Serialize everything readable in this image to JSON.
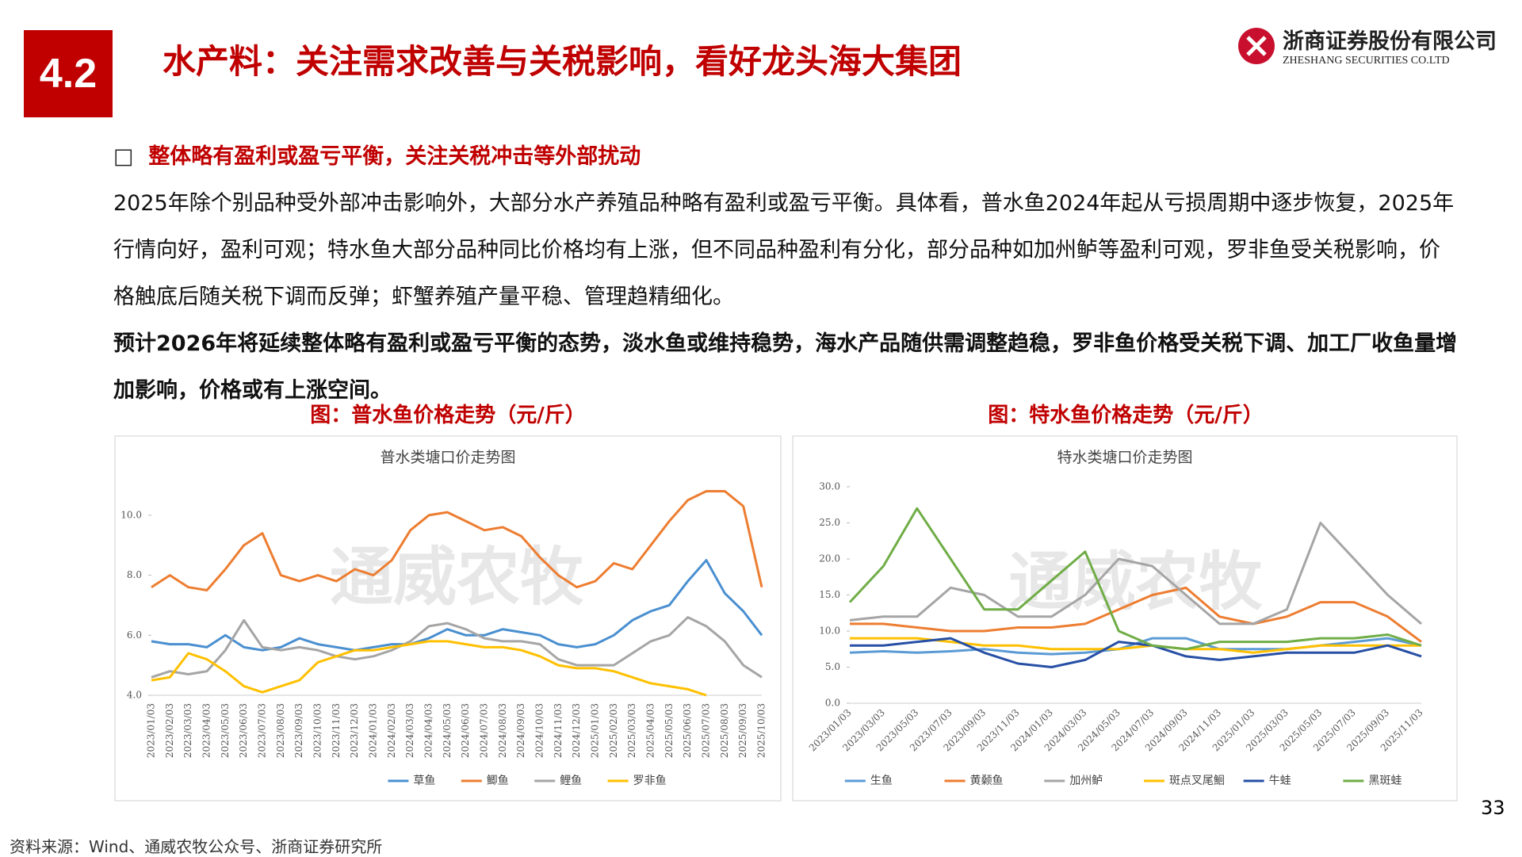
{
  "header": {
    "section": "4.2",
    "title": "水产料：关注需求改善与关税影响，看好龙头海大集团",
    "logo_cn": "浙商证券股份有限公司",
    "logo_en": "ZHESHANG SECURITIES CO.LTD"
  },
  "body": {
    "heading": "整体略有盈利或盈亏平衡，关注关税冲击等外部扰动",
    "paragraph": "2025年除个别品种受外部冲击影响外，大部分水产养殖品种略有盈利或盈亏平衡。具体看，普水鱼2024年起从亏损周期中逐步恢复，2025年行情向好，盈利可观；特水鱼大部分品种同比价格均有上涨，但不同品种盈利有分化，部分品种如加州鲈等盈利可观，罗非鱼受关税影响，价格触底后随关税下调而反弹；虾蟹养殖产量平稳、管理趋精细化。",
    "conclusion": "预计2026年将延续整体略有盈利或盈亏平衡的态势，淡水鱼或维持稳势，海水产品随供需调整趋稳，罗非鱼价格受关税下调、加工厂收鱼量增加影响，价格或有上涨空间。"
  },
  "chart_data": [
    {
      "type": "line",
      "caption": "图：普水鱼价格走势（元/斤）",
      "title": "普水类塘口价走势图",
      "watermark": "通威农牧",
      "categories": [
        "2023/01/03",
        "2023/02/03",
        "2023/03/03",
        "2023/04/03",
        "2023/05/03",
        "2023/06/03",
        "2023/07/03",
        "2023/08/03",
        "2023/09/03",
        "2023/10/03",
        "2023/11/03",
        "2023/12/03",
        "2024/01/03",
        "2024/02/03",
        "2024/03/03",
        "2024/04/03",
        "2024/05/03",
        "2024/06/03",
        "2024/07/03",
        "2024/08/03",
        "2024/09/03",
        "2024/10/03",
        "2024/11/03",
        "2024/12/03",
        "2025/01/03",
        "2025/02/03",
        "2025/03/03",
        "2025/04/03",
        "2025/05/03",
        "2025/06/03",
        "2025/07/03",
        "2025/08/03",
        "2025/09/03",
        "2025/10/03"
      ],
      "ylim": [
        4,
        11
      ],
      "yticks": [
        {
          "value": 4,
          "label": "4.0"
        },
        {
          "value": 6,
          "label": "6.0"
        },
        {
          "value": 8,
          "label": "8.0"
        },
        {
          "value": 10,
          "label": "10.0"
        }
      ],
      "legend": "bottom",
      "series": [
        {
          "name": "草鱼",
          "color": "#4a8fd0",
          "values": [
            5.8,
            5.7,
            5.7,
            5.6,
            6.0,
            5.6,
            5.5,
            5.6,
            5.9,
            5.7,
            5.6,
            5.5,
            5.6,
            5.7,
            5.7,
            5.9,
            6.2,
            6.0,
            6.0,
            6.2,
            6.1,
            6.0,
            5.7,
            5.6,
            5.7,
            6.0,
            6.5,
            6.8,
            7.0,
            7.8,
            8.5,
            7.4,
            6.8,
            6.0
          ]
        },
        {
          "name": "鲫鱼",
          "color": "#ed7d31",
          "values": [
            7.6,
            8.0,
            7.6,
            7.5,
            8.2,
            9.0,
            9.4,
            8.0,
            7.8,
            8.0,
            7.8,
            8.2,
            8.0,
            8.5,
            9.5,
            10.0,
            10.1,
            9.8,
            9.5,
            9.6,
            9.3,
            8.6,
            8.0,
            7.6,
            7.8,
            8.4,
            8.2,
            9.0,
            9.8,
            10.5,
            10.8,
            10.8,
            10.3,
            7.6
          ]
        },
        {
          "name": "鲤鱼",
          "color": "#a5a5a5",
          "values": [
            4.6,
            4.8,
            4.7,
            4.8,
            5.5,
            6.5,
            5.6,
            5.5,
            5.6,
            5.5,
            5.3,
            5.2,
            5.3,
            5.5,
            5.8,
            6.3,
            6.4,
            6.2,
            5.9,
            5.8,
            5.8,
            5.7,
            5.2,
            5.0,
            5.0,
            5.0,
            5.4,
            5.8,
            6.0,
            6.6,
            6.3,
            5.8,
            5.0,
            4.6
          ]
        },
        {
          "name": "罗非鱼",
          "color": "#ffc000",
          "values": [
            4.5,
            4.6,
            5.4,
            5.2,
            4.8,
            4.3,
            4.1,
            4.3,
            4.5,
            5.1,
            5.3,
            5.5,
            5.5,
            5.6,
            5.7,
            5.8,
            5.8,
            5.7,
            5.6,
            5.6,
            5.5,
            5.3,
            5.0,
            4.9,
            4.9,
            4.8,
            4.6,
            4.4,
            4.3,
            4.2,
            4.0,
            null,
            null,
            null
          ]
        }
      ]
    },
    {
      "type": "line",
      "caption": "图：特水鱼价格走势（元/斤）",
      "title": "特水类塘口价走势图",
      "watermark": "通威农牧",
      "categories": [
        "2023/01/03",
        "2023/03/03",
        "2023/05/03",
        "2023/07/03",
        "2023/09/03",
        "2023/11/03",
        "2024/01/03",
        "2024/03/03",
        "2024/05/03",
        "2024/07/03",
        "2024/09/03",
        "2024/11/03",
        "2025/01/03",
        "2025/03/03",
        "2025/05/03",
        "2025/07/03",
        "2025/09/03",
        "2025/11/03"
      ],
      "ylim": [
        0,
        30
      ],
      "yticks": [
        {
          "value": 0,
          "label": "0.0"
        },
        {
          "value": 5,
          "label": "5.0"
        },
        {
          "value": 10,
          "label": "10.0"
        },
        {
          "value": 15,
          "label": "15.0"
        },
        {
          "value": 20,
          "label": "20.0"
        },
        {
          "value": 25,
          "label": "25.0"
        },
        {
          "value": 30,
          "label": "30.0"
        }
      ],
      "legend": "bottom",
      "series": [
        {
          "name": "生鱼",
          "color": "#5b9bd5",
          "values": [
            7.0,
            7.2,
            7.0,
            7.2,
            7.5,
            7.0,
            6.8,
            7.0,
            7.5,
            9.0,
            9.0,
            7.5,
            7.5,
            7.5,
            8.0,
            8.5,
            9.0,
            8.0
          ]
        },
        {
          "name": "黄颡鱼",
          "color": "#ed7d31",
          "values": [
            11,
            11,
            10.5,
            10,
            10,
            10.5,
            10.5,
            11,
            13,
            15,
            16,
            12,
            11,
            12,
            14,
            14,
            12,
            8.5
          ]
        },
        {
          "name": "加州鲈",
          "color": "#a5a5a5",
          "values": [
            11.5,
            12,
            12,
            16,
            15,
            12,
            12,
            15,
            20,
            19,
            15,
            11,
            11,
            13,
            25,
            20,
            15,
            11
          ]
        },
        {
          "name": "斑点叉尾鮰",
          "color": "#ffc000",
          "values": [
            9,
            9,
            9,
            8.5,
            8,
            8,
            7.5,
            7.5,
            7.5,
            8,
            7.5,
            7.5,
            7,
            7.5,
            8,
            8,
            8,
            8
          ]
        },
        {
          "name": "牛蛙",
          "color": "#264fa5",
          "values": [
            8,
            8,
            8.5,
            9,
            7,
            5.5,
            5,
            6,
            8.5,
            8,
            6.5,
            6,
            6.5,
            7,
            7,
            7,
            8,
            6.5
          ]
        },
        {
          "name": "黑斑蛙",
          "color": "#70ad47",
          "values": [
            14,
            19,
            27,
            20,
            13,
            13,
            17,
            21,
            10,
            8,
            7.5,
            8.5,
            8.5,
            8.5,
            9,
            9,
            9.5,
            8
          ]
        }
      ]
    }
  ],
  "footer": {
    "page": "33",
    "source": "资料来源：Wind、通威农牧公众号、浙商证券研究所"
  }
}
